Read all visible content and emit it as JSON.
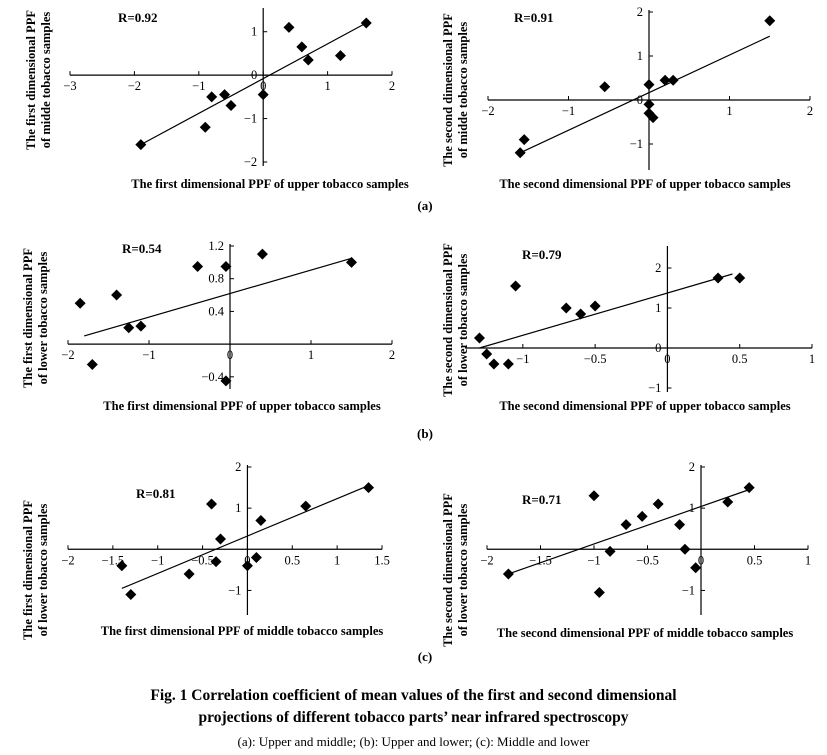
{
  "figure": {
    "caption_line1": "Fig. 1   Correlation coefficient of mean values of the first and second dimensional",
    "caption_line2": "projections of different tobacco parts’ near infrared spectroscopy",
    "sub_caption": "(a): Upper and middle; (b): Upper and lower; (c): Middle and lower",
    "panel_labels": [
      "(a)",
      "(b)",
      "(c)"
    ]
  },
  "chart_data": [
    {
      "type": "scatter",
      "panel": "(a)",
      "r_label": "R=0.92",
      "xlabel": "The first dimensional PPF of upper tobacco samples",
      "ylabel": [
        "The first dimensional PPF",
        "of midde tobacco samples"
      ],
      "xlim": [
        -3,
        2
      ],
      "ylim": [
        -2,
        1.5
      ],
      "xticks": [
        -3,
        -2,
        -1,
        0,
        1,
        2
      ],
      "xtick_labels": [
        "−3",
        "−2",
        "−1",
        "0",
        "1",
        "2"
      ],
      "yticks": [
        -2,
        -1,
        0,
        1
      ],
      "ytick_labels": [
        "−2",
        "−1",
        "0",
        "1"
      ],
      "points": [
        [
          -1.9,
          -1.6
        ],
        [
          -0.9,
          -1.2
        ],
        [
          -0.8,
          -0.5
        ],
        [
          -0.6,
          -0.45
        ],
        [
          -0.5,
          -0.7
        ],
        [
          0,
          -0.45
        ],
        [
          0.4,
          1.1
        ],
        [
          0.6,
          0.65
        ],
        [
          0.7,
          0.35
        ],
        [
          1.2,
          0.45
        ],
        [
          1.6,
          1.2
        ]
      ],
      "fit": [
        [
          -1.9,
          -1.6
        ],
        [
          1.6,
          1.2
        ]
      ]
    },
    {
      "type": "scatter",
      "panel": "(a)",
      "r_label": "R=0.91",
      "xlabel": "The second  dimensional PPF of upper tobacco samples",
      "ylabel": [
        "The second dimensional PPF",
        "of midde tobacco samples"
      ],
      "xlim": [
        -2,
        2
      ],
      "ylim": [
        -1.5,
        2
      ],
      "xticks": [
        -2,
        -1,
        0,
        1,
        2
      ],
      "xtick_labels": [
        "−2",
        "−1",
        "",
        "1",
        "2"
      ],
      "yticks": [
        -1,
        0,
        1,
        2
      ],
      "ytick_labels": [
        "−1",
        "0",
        "1",
        "2"
      ],
      "points": [
        [
          -1.6,
          -1.2
        ],
        [
          -1.55,
          -0.9
        ],
        [
          -0.55,
          0.3
        ],
        [
          0,
          0.35
        ],
        [
          0.2,
          0.45
        ],
        [
          0.3,
          0.45
        ],
        [
          0,
          -0.1
        ],
        [
          0,
          -0.3
        ],
        [
          0.05,
          -0.4
        ],
        [
          1.5,
          1.8
        ]
      ],
      "fit": [
        [
          -1.6,
          -1.2
        ],
        [
          1.5,
          1.45
        ]
      ]
    },
    {
      "type": "scatter",
      "panel": "(b)",
      "r_label": "R=0.54",
      "xlabel": "The first dimensional PPF of upper tobacco samples",
      "ylabel": [
        "The first dimensional PPF",
        "of lower tobacco samples"
      ],
      "xlim": [
        -2,
        2
      ],
      "ylim": [
        -0.5,
        1.2
      ],
      "xticks": [
        -2,
        -1,
        0,
        1,
        2
      ],
      "xtick_labels": [
        "−2",
        "−1",
        "0",
        "1",
        "2"
      ],
      "yticks": [
        -0.4,
        0.4,
        0.8,
        1.2
      ],
      "ytick_labels": [
        "−0.4",
        "0.4",
        "0.8",
        "1.2"
      ],
      "points": [
        [
          -1.85,
          0.5
        ],
        [
          -1.7,
          -0.25
        ],
        [
          -1.4,
          0.6
        ],
        [
          -1.25,
          0.2
        ],
        [
          -1.1,
          0.22
        ],
        [
          -0.4,
          0.95
        ],
        [
          -0.05,
          0.95
        ],
        [
          0.4,
          1.1
        ],
        [
          1.5,
          1.0
        ],
        [
          -0.05,
          -0.45
        ]
      ],
      "fit": [
        [
          -1.8,
          0.1
        ],
        [
          1.5,
          1.05
        ]
      ]
    },
    {
      "type": "scatter",
      "panel": "(b)",
      "r_label": "R=0.79",
      "xlabel": "The second  dimensional PPF of upper tobacco samples",
      "ylabel": [
        "The second dimensional PPF",
        "of lower tobacco samples"
      ],
      "xlim": [
        -1.4,
        1
      ],
      "ylim": [
        -1,
        2.5
      ],
      "xticks": [
        -1,
        -0.5,
        0,
        0.5,
        1
      ],
      "xtick_labels": [
        "−1",
        "−0.5",
        "0",
        "0.5",
        "1"
      ],
      "yticks": [
        -1,
        0,
        1,
        2
      ],
      "ytick_labels": [
        "−1",
        "0",
        "1",
        "2"
      ],
      "points": [
        [
          -1.3,
          0.25
        ],
        [
          -1.25,
          -0.15
        ],
        [
          -1.2,
          -0.4
        ],
        [
          -1.1,
          -0.4
        ],
        [
          -1.05,
          1.55
        ],
        [
          -0.7,
          1.0
        ],
        [
          -0.6,
          0.85
        ],
        [
          -0.5,
          1.05
        ],
        [
          0.35,
          1.75
        ],
        [
          0.5,
          1.75
        ]
      ],
      "fit": [
        [
          -1.3,
          0.0
        ],
        [
          0.45,
          1.85
        ]
      ]
    },
    {
      "type": "scatter",
      "panel": "(c)",
      "r_label": "R=0.81",
      "xlabel": "The first dimensional PPF of middle tobacco samples",
      "ylabel": [
        "The first dimensional PPF",
        "of lower tobacco samples"
      ],
      "xlim": [
        -2,
        1.5
      ],
      "ylim": [
        -1.5,
        2
      ],
      "xticks": [
        -2,
        -1.5,
        -1,
        -0.5,
        0,
        0.5,
        1,
        1.5
      ],
      "xtick_labels": [
        "−2",
        "−1.5",
        "−1",
        "−0.5",
        "0",
        "0.5",
        "1",
        "1.5"
      ],
      "yticks": [
        -1,
        1,
        2
      ],
      "ytick_labels": [
        "−1",
        "1",
        "2"
      ],
      "points": [
        [
          -1.4,
          -0.4
        ],
        [
          -1.3,
          -1.1
        ],
        [
          -0.65,
          -0.6
        ],
        [
          -0.4,
          1.1
        ],
        [
          -0.35,
          -0.3
        ],
        [
          -0.3,
          0.25
        ],
        [
          0,
          -0.4
        ],
        [
          0.1,
          -0.2
        ],
        [
          0.15,
          0.7
        ],
        [
          0.65,
          1.05
        ],
        [
          1.35,
          1.5
        ]
      ],
      "fit": [
        [
          -1.4,
          -0.95
        ],
        [
          1.35,
          1.55
        ]
      ]
    },
    {
      "type": "scatter",
      "panel": "(c)",
      "r_label": "R=0.71",
      "xlabel": "The second  dimensional PPF of middle tobacco samples",
      "ylabel": [
        "The second dimensional PPF",
        "of lower tobacco samples"
      ],
      "xlim": [
        -2,
        1
      ],
      "ylim": [
        -1.5,
        2
      ],
      "xticks": [
        -2,
        -1.5,
        -1,
        -0.5,
        0,
        0.5,
        1
      ],
      "xtick_labels": [
        "−2",
        "−1.5",
        "−1",
        "−0.5",
        "0",
        "0.5",
        "1"
      ],
      "yticks": [
        -1,
        1,
        2
      ],
      "ytick_labels": [
        "−1",
        "1",
        "2"
      ],
      "points": [
        [
          -1.8,
          -0.6
        ],
        [
          -1.0,
          1.3
        ],
        [
          -0.95,
          -1.05
        ],
        [
          -0.85,
          -0.05
        ],
        [
          -0.7,
          0.6
        ],
        [
          -0.55,
          0.8
        ],
        [
          -0.4,
          1.1
        ],
        [
          -0.2,
          0.6
        ],
        [
          -0.15,
          0.0
        ],
        [
          -0.05,
          -0.45
        ],
        [
          0.25,
          1.15
        ],
        [
          0.45,
          1.5
        ]
      ],
      "fit": [
        [
          -1.8,
          -0.6
        ],
        [
          0.45,
          1.45
        ]
      ]
    }
  ]
}
